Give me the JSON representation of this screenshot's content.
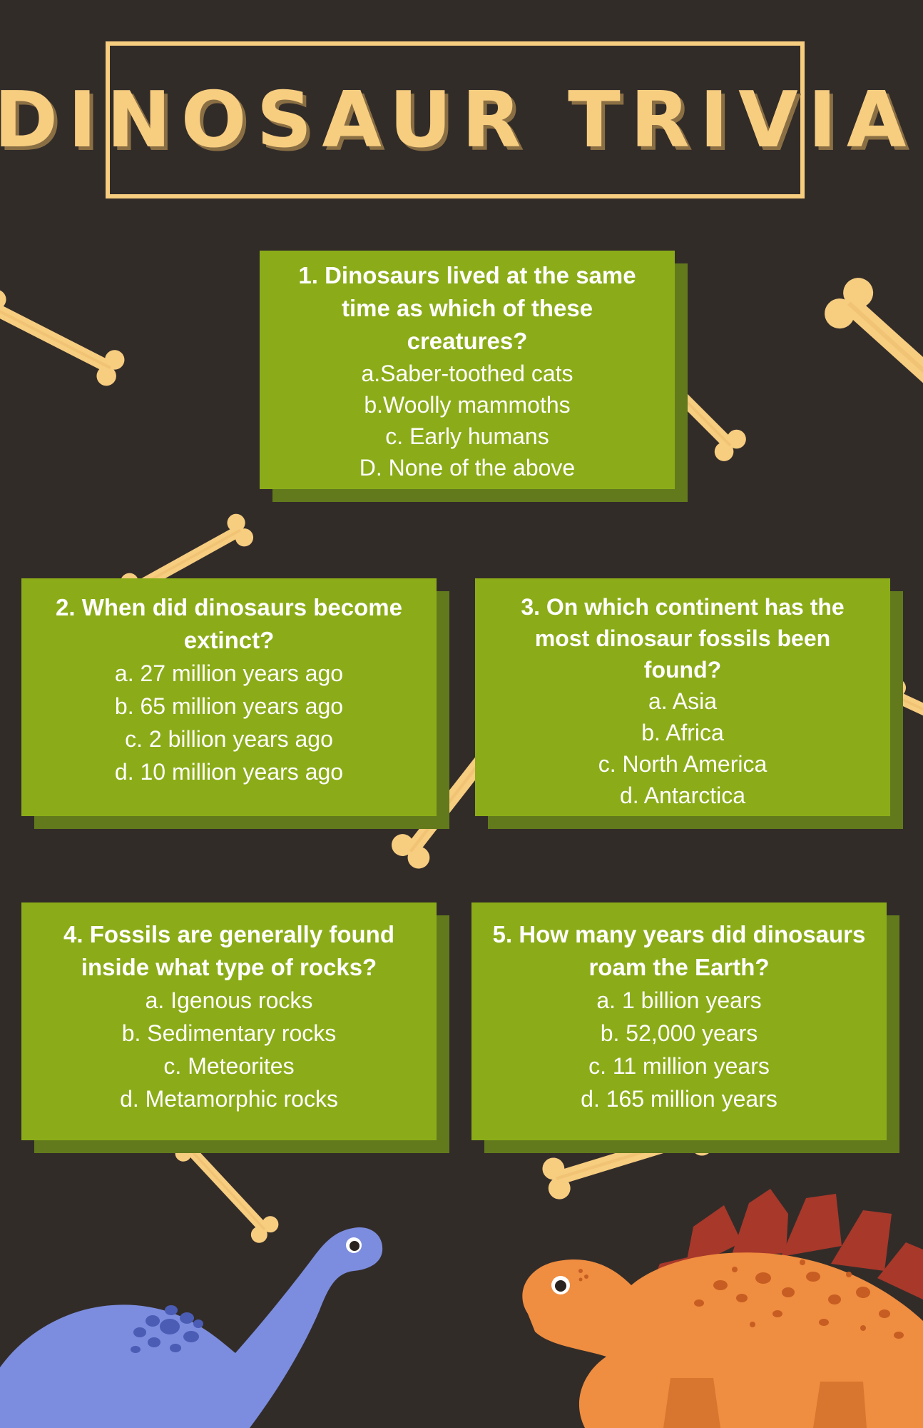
{
  "title": "DINOSAUR TRIVIA",
  "colors": {
    "background": "#322c29",
    "accent": "#f7cd80",
    "card": "#8bac18",
    "card_shadow": "#627a1c",
    "dino_blue": "#7c8ddf",
    "dino_orange": "#ef8d40"
  },
  "questions": [
    {
      "question": "1. Dinosaurs lived at the same time as which of these creatures?",
      "options": [
        "a.Saber-toothed cats",
        "b.Woolly mammoths",
        "c. Early humans",
        "D. None of the above"
      ]
    },
    {
      "question": "2. When did dinosaurs become extinct?",
      "options": [
        "a. 27 million years ago",
        "b. 65 million years ago",
        "c. 2 billion years ago",
        "d. 10 million years ago"
      ]
    },
    {
      "question": "3. On which continent has the most dinosaur fossils been found?",
      "options": [
        "a. Asia",
        "b. Africa",
        "c. North America",
        "d. Antarctica"
      ]
    },
    {
      "question": "4. Fossils are generally found inside what type of rocks?",
      "options": [
        "a. Igenous rocks",
        "b. Sedimentary rocks",
        "c. Meteorites",
        "d. Metamorphic rocks"
      ]
    },
    {
      "question": "5. How many years did dinosaurs roam the Earth?",
      "options": [
        "a. 1 billion years",
        "b. 52,000 years",
        "c. 11 million years",
        "d. 165 million years"
      ]
    }
  ],
  "illustrations": [
    "bone-icon",
    "blue-dinosaur-icon",
    "orange-stegosaurus-icon"
  ]
}
